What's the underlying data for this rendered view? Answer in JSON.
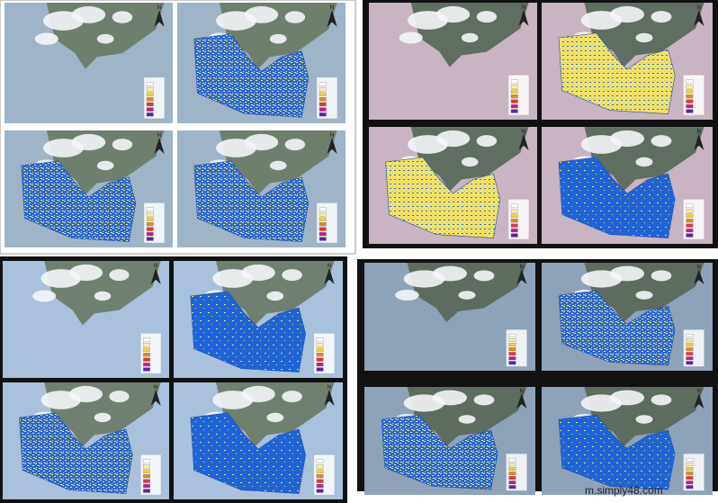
{
  "north_label": "N",
  "watermark": "m.simply48.com"
}
